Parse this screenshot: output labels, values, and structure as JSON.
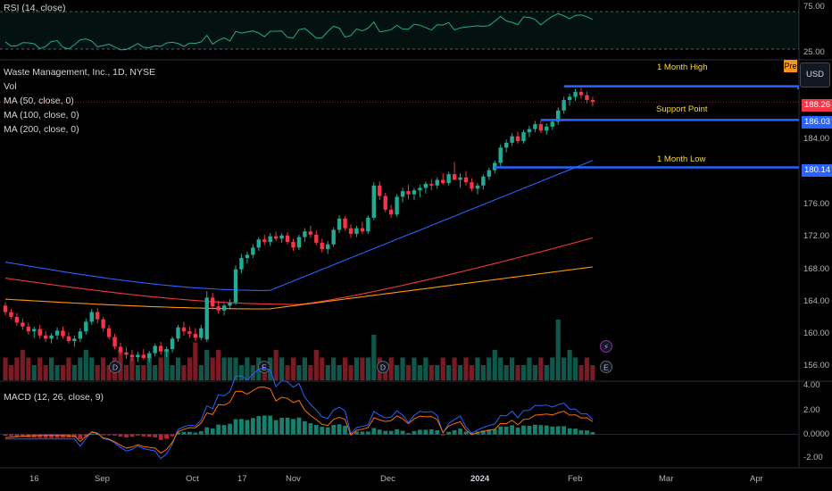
{
  "panes": {
    "rsi": {
      "label": "RSI (14, close)",
      "levels": [
        "75.00",
        "25.00"
      ]
    },
    "price": {
      "title": "Waste Management, Inc., 1D, NYSE",
      "legend": [
        "Vol",
        "MA (50, close, 0)",
        "MA (100, close, 0)",
        "MA (200, close, 0)"
      ],
      "ticks": [
        "184.00",
        "176.00",
        "172.00",
        "168.00",
        "164.00",
        "160.00",
        "156.00"
      ],
      "price_tags": [
        {
          "text": "188.26",
          "color": "#f23645"
        },
        {
          "text": "186.03",
          "color": "#2962ff"
        },
        {
          "text": "180.14",
          "color": "#2962ff"
        }
      ],
      "annotations": [
        "1 Month High",
        "Support Point",
        "1 Month Low"
      ],
      "currency": "USD",
      "session_badge": "Pre",
      "event_markers": [
        "D",
        "E",
        "D",
        "E"
      ]
    },
    "macd": {
      "label": "MACD (12, 26, close, 9)",
      "ticks": [
        "4.00",
        "2.00",
        "0.0000",
        "-2.00"
      ]
    }
  },
  "x_axis": [
    "16",
    "Sep",
    "Oct",
    "17",
    "Nov",
    "Dec",
    "2024",
    "Feb",
    "Mar",
    "Apr"
  ],
  "colors": {
    "up": "#22ab94",
    "down": "#f23645",
    "ma50": "#2962ff",
    "ma100": "#f23645",
    "ma200": "#ff9800",
    "level": "#2962ff",
    "rsi": "#22ab94"
  },
  "chart_data": {
    "type": "candlestick",
    "ohlc": [
      [
        163.0,
        163.4,
        161.8,
        162.2
      ],
      [
        162.2,
        162.6,
        161.3,
        161.6
      ],
      [
        161.6,
        162.1,
        160.5,
        160.9
      ],
      [
        160.9,
        161.4,
        160.0,
        160.4
      ],
      [
        160.4,
        160.9,
        159.4,
        159.8
      ],
      [
        159.8,
        160.4,
        159.0,
        160.1
      ],
      [
        160.1,
        160.6,
        158.9,
        159.3
      ],
      [
        159.3,
        159.8,
        158.5,
        158.9
      ],
      [
        158.9,
        159.6,
        158.3,
        159.3
      ],
      [
        159.3,
        160.3,
        158.8,
        159.9
      ],
      [
        159.9,
        160.4,
        158.9,
        159.2
      ],
      [
        159.2,
        159.7,
        158.3,
        158.6
      ],
      [
        158.6,
        159.3,
        157.9,
        158.9
      ],
      [
        158.9,
        160.2,
        158.5,
        159.8
      ],
      [
        159.8,
        161.4,
        159.4,
        161.0
      ],
      [
        161.0,
        162.6,
        160.6,
        162.2
      ],
      [
        162.2,
        162.7,
        160.8,
        161.3
      ],
      [
        161.3,
        161.6,
        159.8,
        160.2
      ],
      [
        160.2,
        160.6,
        158.8,
        159.1
      ],
      [
        159.1,
        159.5,
        157.6,
        157.9
      ],
      [
        157.9,
        158.4,
        156.9,
        157.2
      ],
      [
        157.2,
        157.8,
        156.4,
        156.9
      ],
      [
        156.9,
        157.5,
        156.1,
        156.6
      ],
      [
        156.6,
        157.3,
        156.0,
        156.9
      ],
      [
        156.9,
        157.6,
        156.3,
        156.5
      ],
      [
        156.5,
        157.4,
        156.0,
        157.1
      ],
      [
        157.1,
        158.3,
        156.7,
        158.0
      ],
      [
        158.0,
        158.5,
        156.9,
        157.3
      ],
      [
        157.3,
        157.9,
        156.6,
        157.6
      ],
      [
        157.6,
        159.2,
        157.2,
        158.9
      ],
      [
        158.9,
        160.6,
        158.5,
        160.3
      ],
      [
        160.3,
        161.0,
        159.3,
        159.8
      ],
      [
        159.8,
        160.4,
        159.0,
        159.5
      ],
      [
        159.5,
        160.2,
        158.6,
        159.0
      ],
      [
        159.0,
        160.6,
        158.7,
        160.2
      ],
      [
        158.8,
        164.8,
        158.5,
        164.0
      ],
      [
        164.0,
        164.6,
        162.5,
        162.9
      ],
      [
        162.9,
        163.6,
        162.0,
        162.4
      ],
      [
        162.4,
        163.3,
        161.8,
        163.0
      ],
      [
        163.0,
        163.8,
        162.5,
        163.4
      ],
      [
        163.4,
        168.0,
        163.1,
        167.5
      ],
      [
        167.5,
        169.4,
        167.0,
        168.9
      ],
      [
        168.9,
        169.7,
        168.2,
        169.3
      ],
      [
        169.3,
        170.6,
        168.9,
        170.2
      ],
      [
        170.2,
        171.5,
        169.8,
        171.2
      ],
      [
        171.2,
        171.8,
        170.5,
        170.9
      ],
      [
        170.9,
        172.0,
        170.4,
        171.6
      ],
      [
        171.6,
        172.2,
        171.0,
        171.3
      ],
      [
        171.3,
        172.0,
        170.8,
        171.7
      ],
      [
        171.7,
        172.1,
        170.6,
        170.9
      ],
      [
        170.9,
        171.3,
        169.8,
        170.2
      ],
      [
        170.2,
        171.8,
        169.9,
        171.5
      ],
      [
        171.5,
        172.6,
        170.9,
        172.2
      ],
      [
        172.2,
        172.9,
        171.4,
        171.8
      ],
      [
        171.8,
        172.3,
        170.5,
        170.8
      ],
      [
        170.8,
        171.3,
        169.6,
        170.0
      ],
      [
        170.0,
        171.0,
        169.4,
        170.6
      ],
      [
        170.6,
        172.7,
        170.3,
        172.4
      ],
      [
        172.4,
        174.2,
        172.0,
        173.8
      ],
      [
        173.8,
        174.1,
        172.3,
        172.6
      ],
      [
        172.6,
        173.1,
        171.4,
        171.9
      ],
      [
        171.9,
        172.9,
        171.5,
        172.6
      ],
      [
        172.6,
        173.4,
        171.9,
        172.2
      ],
      [
        172.2,
        174.2,
        171.9,
        173.9
      ],
      [
        173.9,
        178.3,
        173.6,
        177.9
      ],
      [
        177.9,
        178.4,
        176.1,
        176.6
      ],
      [
        176.6,
        177.0,
        174.6,
        174.9
      ],
      [
        174.9,
        175.5,
        173.9,
        174.3
      ],
      [
        174.3,
        176.8,
        174.0,
        176.5
      ],
      [
        176.5,
        177.6,
        175.8,
        177.2
      ],
      [
        177.2,
        178.0,
        176.2,
        176.8
      ],
      [
        176.8,
        177.6,
        176.1,
        177.3
      ],
      [
        177.3,
        178.0,
        176.4,
        177.6
      ],
      [
        177.6,
        178.4,
        176.9,
        178.1
      ],
      [
        178.1,
        178.7,
        177.3,
        177.9
      ],
      [
        177.9,
        178.9,
        177.5,
        178.6
      ],
      [
        178.6,
        179.4,
        178.0,
        178.2
      ],
      [
        178.2,
        179.6,
        177.9,
        179.3
      ],
      [
        179.3,
        180.8,
        178.9,
        178.6
      ],
      [
        178.6,
        179.4,
        177.6,
        178.9
      ],
      [
        178.9,
        179.7,
        177.9,
        178.3
      ],
      [
        178.3,
        178.8,
        177.2,
        177.5
      ],
      [
        177.5,
        178.2,
        176.8,
        177.9
      ],
      [
        177.9,
        179.3,
        177.4,
        179.0
      ],
      [
        179.0,
        180.1,
        178.6,
        179.8
      ],
      [
        179.8,
        181.0,
        179.4,
        180.7
      ],
      [
        180.7,
        183.0,
        180.3,
        182.6
      ],
      [
        182.6,
        183.6,
        182.0,
        183.2
      ],
      [
        183.2,
        184.4,
        182.8,
        184.0
      ],
      [
        184.0,
        184.6,
        183.1,
        183.4
      ],
      [
        183.4,
        184.8,
        183.1,
        184.5
      ],
      [
        184.5,
        185.3,
        183.9,
        184.9
      ],
      [
        184.9,
        185.9,
        184.5,
        185.5
      ],
      [
        185.5,
        185.9,
        184.4,
        184.7
      ],
      [
        184.7,
        185.6,
        184.2,
        185.2
      ],
      [
        185.2,
        186.2,
        184.8,
        185.8
      ],
      [
        185.8,
        187.6,
        185.4,
        187.2
      ],
      [
        187.2,
        188.9,
        186.8,
        188.5
      ],
      [
        188.5,
        189.3,
        187.8,
        188.9
      ],
      [
        188.9,
        189.9,
        188.4,
        189.5
      ],
      [
        189.5,
        190.0,
        188.7,
        189.1
      ],
      [
        189.1,
        189.5,
        188.1,
        188.5
      ],
      [
        188.5,
        188.9,
        187.7,
        188.26
      ]
    ],
    "volume_scale": "relative",
    "volume": [
      3,
      2,
      3,
      4,
      3,
      2,
      3,
      2,
      3,
      2,
      2,
      3,
      2,
      3,
      4,
      3,
      2,
      3,
      2,
      3,
      4,
      2,
      3,
      2,
      2,
      3,
      2,
      3,
      4,
      2,
      3,
      2,
      3,
      5,
      2,
      4,
      3,
      4,
      3,
      3,
      3,
      2,
      3,
      2,
      3,
      2,
      3,
      4,
      3,
      2,
      3,
      2,
      3,
      2,
      4,
      3,
      2,
      3,
      2,
      3,
      2,
      3,
      3,
      3,
      6,
      3,
      2,
      3,
      2,
      3,
      2,
      3,
      2,
      3,
      2,
      2,
      3,
      2,
      3,
      2,
      3,
      2,
      3,
      2,
      3,
      4,
      3,
      2,
      3,
      2,
      2,
      3,
      2,
      3,
      2,
      3,
      8,
      3,
      4,
      3,
      2,
      3,
      2
    ],
    "ma50": {
      "first": 168.4,
      "last": 181.0
    },
    "ma100": {
      "first": 166.4,
      "last": 171.4
    },
    "ma200": {
      "first": 163.8,
      "last": 167.8
    },
    "levels": {
      "one_month_high": 190.2,
      "support": 186.03,
      "one_month_low": 180.14,
      "last": 188.26
    },
    "price_range": [
      154.4,
      192.6
    ],
    "rsi_levels": [
      25,
      75
    ],
    "macd_range": [
      -2.6,
      4.4
    ]
  }
}
